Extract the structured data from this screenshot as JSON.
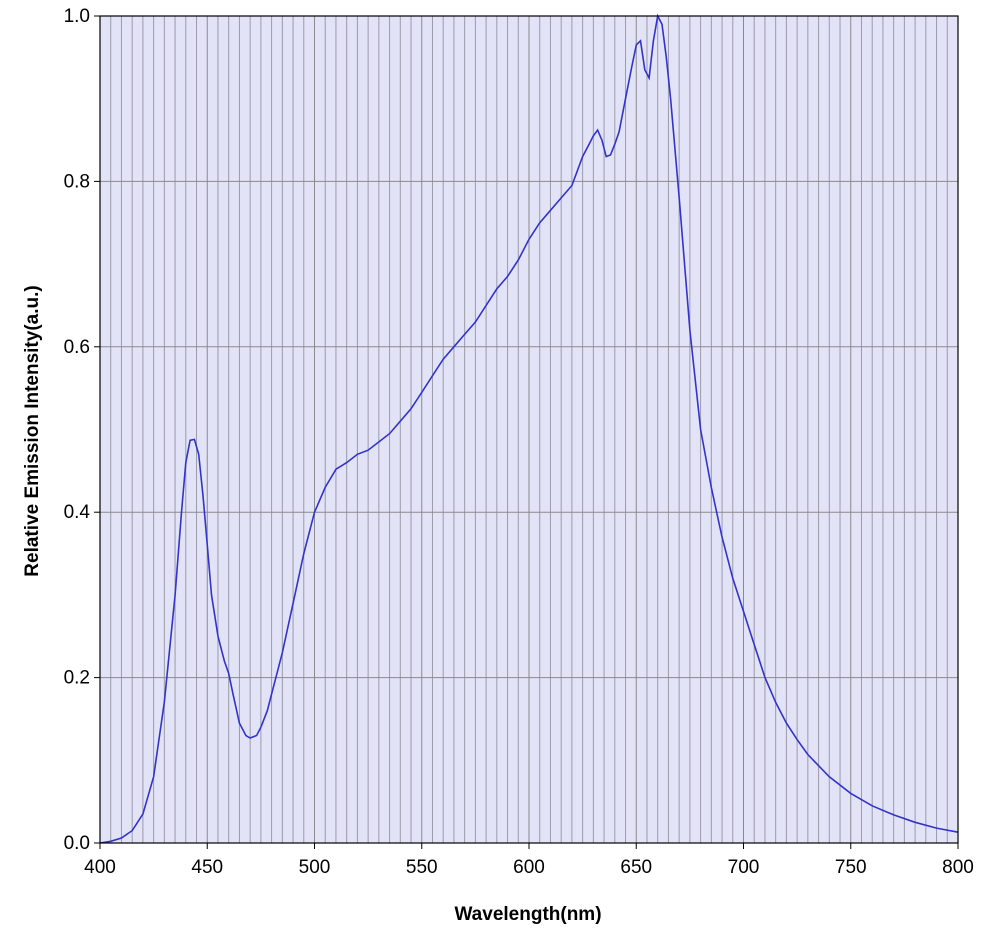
{
  "chart_data": {
    "type": "line",
    "title": "",
    "xlabel": "Wavelength(nm)",
    "ylabel": "Relative Emission Intensity(a.u.)",
    "xlim": [
      400,
      800
    ],
    "ylim": [
      0,
      1.0
    ],
    "x_ticks": [
      "400",
      "450",
      "500",
      "550",
      "600",
      "650",
      "700",
      "750",
      "800"
    ],
    "y_ticks": [
      "0.0",
      "0.2",
      "0.4",
      "0.6",
      "0.8",
      "1.0"
    ],
    "x_tick_values": [
      400,
      450,
      500,
      550,
      600,
      650,
      700,
      750,
      800
    ],
    "y_tick_values": [
      0,
      0.2,
      0.4,
      0.6,
      0.8,
      1.0
    ],
    "minor_x_grid_step": 5,
    "grid": true,
    "legend": "none",
    "colors": {
      "plot_background": "#e3e3f8",
      "line": "#3333cc",
      "major_grid": "#8a8a8a",
      "minor_grid": "#9a9aa8",
      "axis": "#000000"
    },
    "series": [
      {
        "x": [
          400,
          405,
          410,
          415,
          420,
          425,
          430,
          435,
          438,
          440,
          442,
          444,
          446,
          448,
          450,
          452,
          455,
          458,
          460,
          462,
          465,
          468,
          470,
          473,
          475,
          478,
          480,
          485,
          490,
          495,
          500,
          505,
          510,
          515,
          520,
          525,
          530,
          535,
          540,
          545,
          550,
          555,
          560,
          565,
          570,
          575,
          580,
          585,
          590,
          595,
          600,
          605,
          610,
          615,
          620,
          625,
          628,
          630,
          632,
          634,
          636,
          638,
          640,
          642,
          645,
          648,
          650,
          652,
          654,
          656,
          658,
          660,
          662,
          664,
          666,
          668,
          670,
          675,
          680,
          685,
          690,
          695,
          700,
          705,
          710,
          715,
          720,
          725,
          730,
          740,
          750,
          760,
          770,
          780,
          790,
          800
        ],
        "y": [
          0.0,
          0.002,
          0.006,
          0.015,
          0.035,
          0.08,
          0.17,
          0.3,
          0.4,
          0.46,
          0.487,
          0.488,
          0.47,
          0.42,
          0.36,
          0.3,
          0.25,
          0.22,
          0.205,
          0.18,
          0.145,
          0.13,
          0.127,
          0.13,
          0.14,
          0.16,
          0.18,
          0.23,
          0.29,
          0.35,
          0.4,
          0.43,
          0.452,
          0.46,
          0.47,
          0.475,
          0.485,
          0.495,
          0.51,
          0.525,
          0.545,
          0.565,
          0.585,
          0.6,
          0.615,
          0.63,
          0.65,
          0.67,
          0.685,
          0.705,
          0.73,
          0.75,
          0.765,
          0.78,
          0.795,
          0.83,
          0.845,
          0.855,
          0.862,
          0.85,
          0.83,
          0.832,
          0.845,
          0.86,
          0.9,
          0.94,
          0.965,
          0.97,
          0.935,
          0.925,
          0.97,
          1.0,
          0.99,
          0.95,
          0.9,
          0.84,
          0.78,
          0.62,
          0.5,
          0.43,
          0.37,
          0.32,
          0.28,
          0.24,
          0.2,
          0.17,
          0.145,
          0.125,
          0.107,
          0.08,
          0.06,
          0.045,
          0.034,
          0.025,
          0.018,
          0.013
        ]
      }
    ]
  }
}
